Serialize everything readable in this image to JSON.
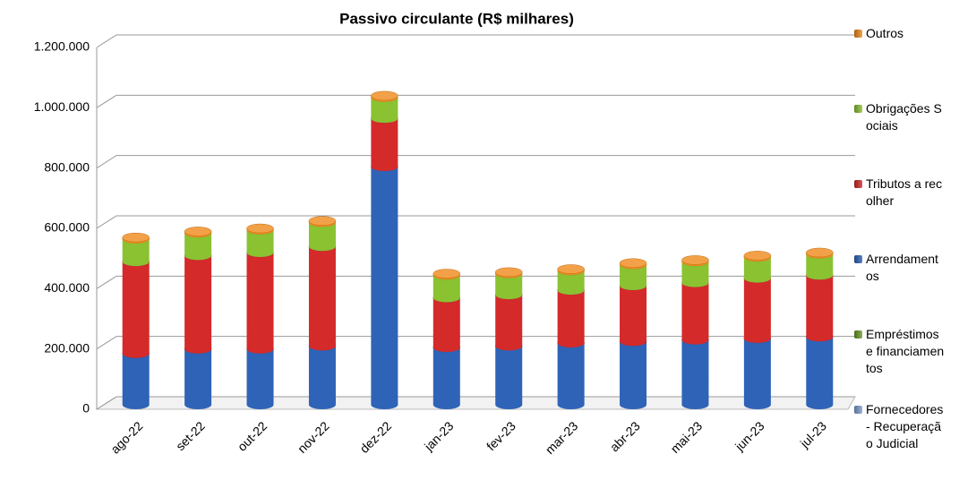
{
  "chart_data": {
    "type": "bar",
    "stacked": true,
    "title": "Passivo circulante (R$ milhares)",
    "categories": [
      "ago-22",
      "set-22",
      "out-22",
      "nov-22",
      "dez-22",
      "jan-23",
      "fev-23",
      "mar-23",
      "abr-23",
      "mai-23",
      "jun-23",
      "jul-23"
    ],
    "series": [
      {
        "name": "Fornecedores - Recuperação Judicial",
        "color": "#7f9fd0",
        "values": [
          0,
          0,
          0,
          0,
          0,
          0,
          0,
          0,
          0,
          0,
          0,
          0
        ]
      },
      {
        "name": "Empréstimos e financiamentos",
        "color": "#6b9a2a",
        "values": [
          0,
          0,
          0,
          0,
          0,
          0,
          0,
          0,
          0,
          0,
          0,
          0
        ]
      },
      {
        "name": "Arrendamentos",
        "color": "#2e63b8",
        "values": [
          170000,
          185000,
          185000,
          195000,
          790000,
          190000,
          195000,
          205000,
          210000,
          215000,
          220000,
          225000
        ]
      },
      {
        "name": "Tributos a recolher",
        "color": "#d42a2a",
        "values": [
          305000,
          310000,
          320000,
          330000,
          160000,
          165000,
          170000,
          175000,
          185000,
          190000,
          200000,
          205000
        ]
      },
      {
        "name": "Obrigações Sociais",
        "color": "#8ac232",
        "values": [
          75000,
          75000,
          75000,
          80000,
          70000,
          75000,
          70000,
          65000,
          70000,
          70000,
          70000,
          70000
        ]
      },
      {
        "name": "Outros",
        "color": "#f08a1c",
        "values": [
          5000,
          5000,
          5000,
          5000,
          5000,
          5000,
          5000,
          5000,
          5000,
          5000,
          5000,
          5000
        ]
      }
    ],
    "ylim": [
      0,
      1200000
    ],
    "yticks": [
      0,
      {
        "value": 200000,
        "label": "200.000"
      },
      {
        "value": 400000,
        "label": "400.000"
      },
      {
        "value": 600000,
        "label": "600.000"
      },
      {
        "value": 800000,
        "label": "800.000"
      },
      {
        "value": 1000000,
        "label": "1.000.000"
      },
      {
        "value": 1200000,
        "label": "1.200.000"
      }
    ],
    "grid": true,
    "legend": "right"
  }
}
